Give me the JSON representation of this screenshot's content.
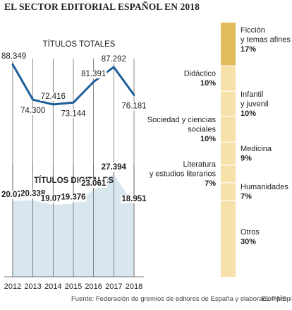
{
  "title": "EL SECTOR EDITORIAL ESPAÑOL EN 2018",
  "source": "Fuente: Federación de gremios de editores de España y elaboración propia.",
  "brand": "EL PAÍS",
  "chart_data": [
    {
      "type": "line",
      "title": "TÍTULOS TOTALES",
      "x": [
        "2012",
        "2013",
        "2014",
        "2015",
        "2016",
        "2017",
        "2018"
      ],
      "series": [
        {
          "values": [
            88349,
            74300,
            72416,
            73144,
            81391,
            87292,
            76181
          ]
        }
      ],
      "labels": [
        "88.349",
        "74.300",
        "72.416",
        "73.144",
        "81.391",
        "87.292",
        "76.181"
      ],
      "color": "#1f5f99",
      "ylim": [
        69000,
        91500
      ]
    },
    {
      "type": "area",
      "title": "TÍTULOS DIGITALES",
      "x": [
        "2012",
        "2013",
        "2014",
        "2015",
        "2016",
        "2017",
        "2018"
      ],
      "series": [
        {
          "values": [
            20079,
            20338,
            19077,
            19376,
            23061,
            27394,
            18951
          ]
        }
      ],
      "labels": [
        "20.079",
        "20.338",
        "19.077",
        "19.376",
        "23.061",
        "27.394",
        "18.951"
      ],
      "color": "#d8e7ef",
      "ylim": [
        0,
        30000
      ]
    },
    {
      "type": "bar",
      "stacked": true,
      "categories": [
        "Ficción y temas afines",
        "Didáctico",
        "Infantil y juvenil",
        "Sociedad y ciencias sociales",
        "Medicina",
        "Literatura y estudios literarios",
        "Humanidades",
        "Otros"
      ],
      "label_lines": [
        [
          "Ficción",
          "y temas afines"
        ],
        [
          "Didáctico"
        ],
        [
          "Infantil",
          "y juvenil"
        ],
        [
          "Sociedad y ciencias",
          "sociales"
        ],
        [
          "Medicina"
        ],
        [
          "Literatura",
          "y estudios literarios"
        ],
        [
          "Humanidades"
        ],
        [
          "Otros"
        ]
      ],
      "values": [
        17,
        10,
        10,
        10,
        9,
        7,
        7,
        30
      ],
      "value_labels": [
        "17%",
        "10%",
        "10%",
        "10%",
        "9%",
        "7%",
        "7%",
        "30%"
      ],
      "colors": [
        "#e2bb5c",
        "#f6e1aa",
        "#f6e1aa",
        "#f6e1aa",
        "#f6e1aa",
        "#f6e1aa",
        "#f6e1aa",
        "#f6e1aa"
      ],
      "label_side": [
        "right",
        "left",
        "right",
        "left",
        "right",
        "left",
        "right",
        "right"
      ]
    }
  ]
}
